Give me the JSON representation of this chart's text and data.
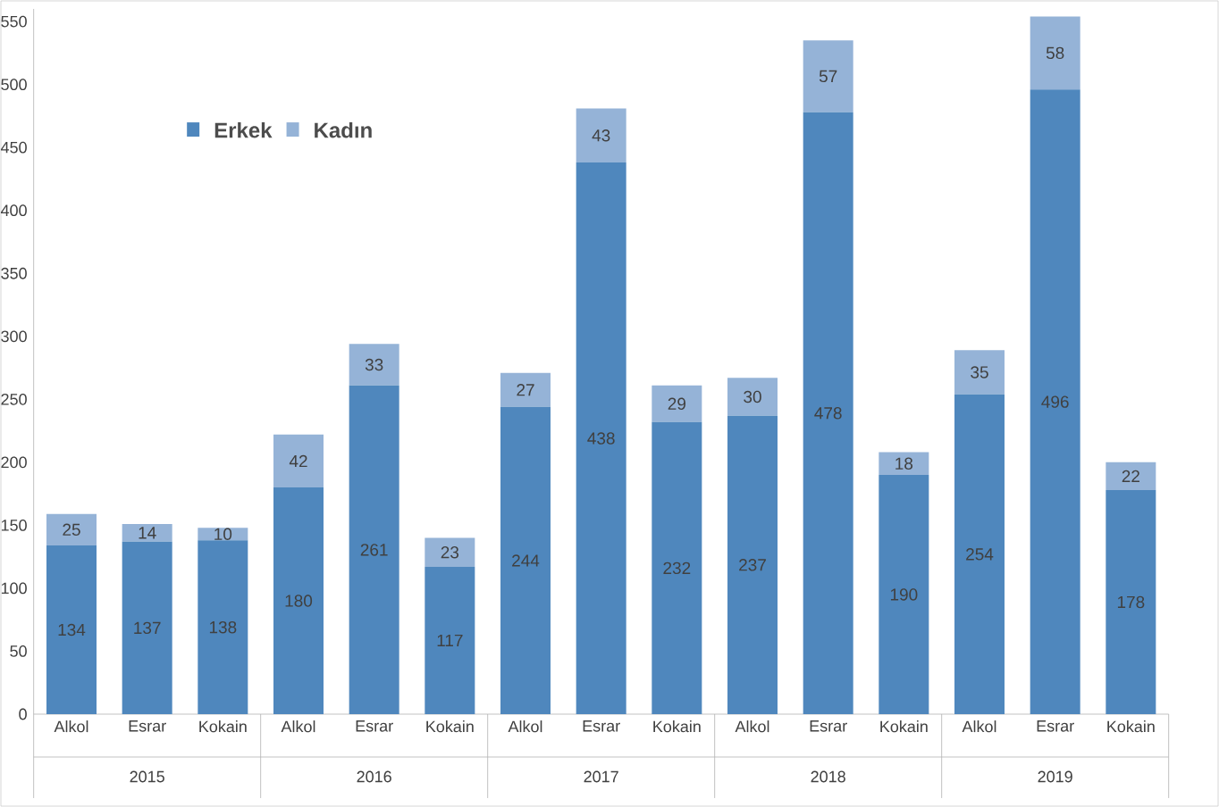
{
  "chart_data": {
    "type": "bar",
    "stacked": true,
    "data_labels": true,
    "legend": "top left",
    "grid": false,
    "categories": [
      "Alkol",
      "Esrar",
      "Kokain",
      "Alkol",
      "Esrar",
      "Kokain",
      "Alkol",
      "Esrar",
      "Kokain",
      "Alkol",
      "Esrar",
      "Kokain",
      "Alkol",
      "Esrar",
      "Kokain"
    ],
    "series": [
      {
        "name": "Erkek",
        "color": "#4f87bd",
        "values": [
          134,
          137,
          138,
          180,
          261,
          117,
          244,
          438,
          232,
          237,
          478,
          190,
          254,
          496,
          178
        ]
      },
      {
        "name": "Kadın",
        "color": "#95b3d7",
        "values": [
          25,
          14,
          10,
          42,
          33,
          23,
          27,
          43,
          29,
          30,
          57,
          18,
          35,
          58,
          22
        ]
      }
    ],
    "annotations": [
      "2015",
      "2016",
      "2017",
      "2018",
      "2019"
    ],
    "ylim": [
      0,
      560
    ],
    "yticks": [
      0,
      50,
      100,
      150,
      200,
      250,
      300,
      350,
      400,
      450,
      500,
      550
    ]
  }
}
